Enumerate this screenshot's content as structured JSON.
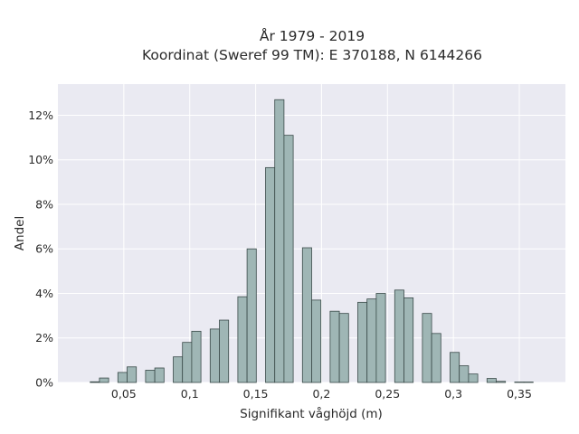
{
  "chart_data": {
    "type": "bar",
    "title": "År 1979 - 2019",
    "subtitle": "Koordinat (Sweref 99 TM): E 370188, N 6144266",
    "xlabel": "Signifikant våghöjd (m)",
    "ylabel": "Andel",
    "xlim": [
      0.0,
      0.385
    ],
    "ylim": [
      0,
      13.4
    ],
    "x_ticks": [
      0.05,
      0.1,
      0.15,
      0.2,
      0.25,
      0.3,
      0.35
    ],
    "x_tick_labels": [
      "0,05",
      "0,1",
      "0,15",
      "0,2",
      "0,25",
      "0,3",
      "0,35"
    ],
    "y_ticks": [
      0,
      2,
      4,
      6,
      8,
      10,
      12
    ],
    "y_tick_labels": [
      "0%",
      "2%",
      "4%",
      "6%",
      "8%",
      "10%",
      "12%"
    ],
    "bin_width": 0.007,
    "grid": true,
    "colors": {
      "bar_fill": "#9fb6b5",
      "bar_edge": "#3a4a49",
      "plot_bg": "#eaeaf2",
      "grid": "#ffffff"
    },
    "bars": [
      {
        "x": 0.028,
        "y": 0.03
      },
      {
        "x": 0.035,
        "y": 0.2
      },
      {
        "x": 0.049,
        "y": 0.45
      },
      {
        "x": 0.056,
        "y": 0.7
      },
      {
        "x": 0.07,
        "y": 0.55
      },
      {
        "x": 0.077,
        "y": 0.65
      },
      {
        "x": 0.091,
        "y": 1.15
      },
      {
        "x": 0.098,
        "y": 1.8
      },
      {
        "x": 0.105,
        "y": 2.3
      },
      {
        "x": 0.119,
        "y": 2.4
      },
      {
        "x": 0.126,
        "y": 2.8
      },
      {
        "x": 0.14,
        "y": 3.85
      },
      {
        "x": 0.147,
        "y": 6.0
      },
      {
        "x": 0.161,
        "y": 9.65
      },
      {
        "x": 0.168,
        "y": 12.7
      },
      {
        "x": 0.175,
        "y": 11.1
      },
      {
        "x": 0.189,
        "y": 6.05
      },
      {
        "x": 0.196,
        "y": 3.7
      },
      {
        "x": 0.21,
        "y": 3.2
      },
      {
        "x": 0.217,
        "y": 3.1
      },
      {
        "x": 0.231,
        "y": 3.6
      },
      {
        "x": 0.238,
        "y": 3.75
      },
      {
        "x": 0.245,
        "y": 4.0
      },
      {
        "x": 0.259,
        "y": 4.15
      },
      {
        "x": 0.266,
        "y": 3.8
      },
      {
        "x": 0.28,
        "y": 3.1
      },
      {
        "x": 0.287,
        "y": 2.2
      },
      {
        "x": 0.301,
        "y": 1.35
      },
      {
        "x": 0.308,
        "y": 0.75
      },
      {
        "x": 0.315,
        "y": 0.38
      },
      {
        "x": 0.329,
        "y": 0.18
      },
      {
        "x": 0.336,
        "y": 0.05
      },
      {
        "x": 0.35,
        "y": 0.02
      },
      {
        "x": 0.357,
        "y": 0.02
      }
    ]
  }
}
